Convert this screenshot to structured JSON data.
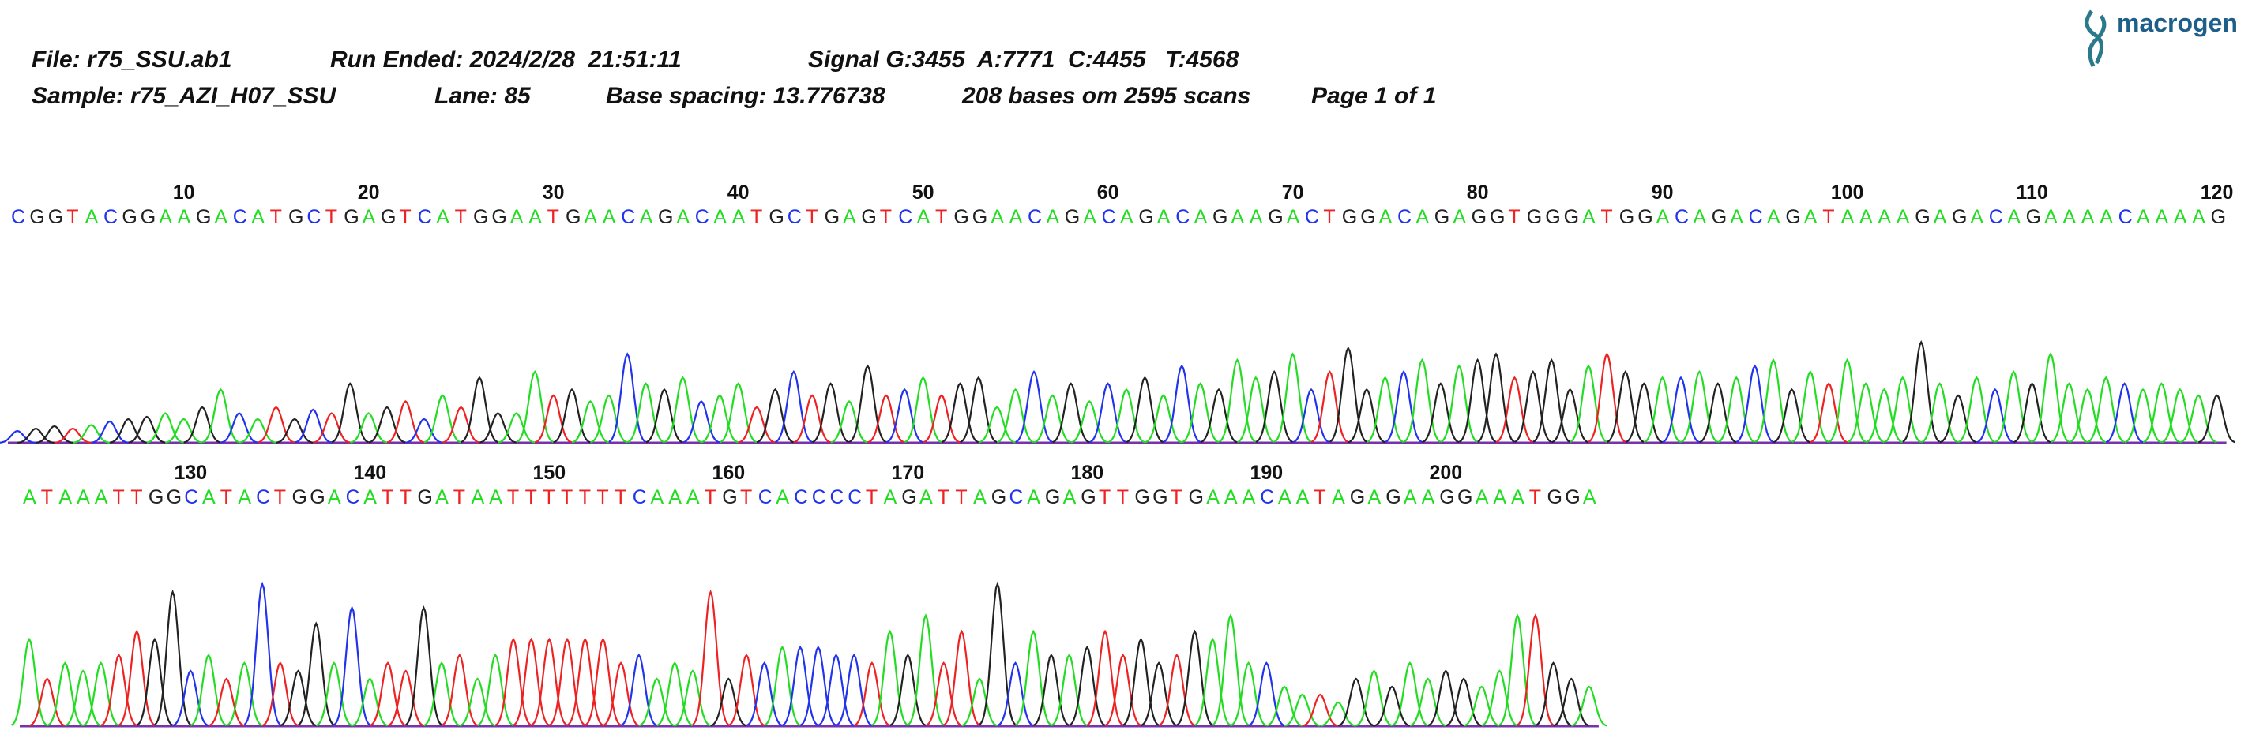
{
  "header": {
    "logo": "macrogen",
    "lines": [
      [
        "File: r75_SSU.ab1",
        "Run Ended: 2024/2/28  21:51:11",
        "Signal G:3455  A:7771  C:4455   T:4568"
      ],
      [
        "Sample: r75_AZI_H07_SSU",
        "Lane: 85",
        "Base spacing: 13.776738",
        "208 bases om 2595 scans",
        "Page 1 of 1"
      ]
    ]
  },
  "base_colors": {
    "A": "#22dd22",
    "C": "#2233ee",
    "G": "#222222",
    "T": "#ee2222"
  },
  "rows": [
    {
      "start": 1,
      "ticks": [
        10,
        20,
        30,
        40,
        50,
        60,
        70,
        80,
        90,
        100,
        110,
        120
      ],
      "bases": "CGGTACGGAAGACATGCTGAGTCATGGAATGAACAGACAATGCTGAGTCATGGAACAGACAGACAGAAGACTGGACAGAGGTGGGATGGACAGACAGATAAAAGAGACAGAAAACAAAAG",
      "peaks": [
        10,
        12,
        14,
        12,
        15,
        18,
        20,
        22,
        25,
        20,
        30,
        45,
        25,
        20,
        30,
        20,
        28,
        25,
        50,
        25,
        30,
        35,
        20,
        40,
        30,
        55,
        25,
        25,
        60,
        40,
        45,
        35,
        40,
        75,
        50,
        45,
        55,
        35,
        40,
        50,
        30,
        45,
        60,
        40,
        50,
        35,
        65,
        40,
        45,
        55,
        40,
        50,
        55,
        30,
        45,
        60,
        40,
        50,
        35,
        50,
        45,
        55,
        40,
        65,
        50,
        45,
        70,
        55,
        60,
        75,
        45,
        60,
        80,
        45,
        55,
        60,
        70,
        50,
        65,
        70,
        75,
        55,
        60,
        70,
        45,
        65,
        75,
        60,
        50,
        55,
        55,
        60,
        50,
        55,
        65,
        70,
        45,
        60,
        50,
        70,
        50,
        45,
        55,
        85,
        50,
        40,
        55,
        45,
        60,
        50,
        75,
        50,
        45,
        55,
        50,
        45,
        50,
        45,
        40,
        40
      ]
    },
    {
      "start": 121,
      "ticks": [
        130,
        140,
        150,
        160,
        170,
        180,
        190,
        200
      ],
      "bases": "ATAAATTGGCATACTGGACATTGATAATTTTTTTCAAATGTCACCCCTAGATTAGCAGAGTTGGTGAAACAATAGAGAAGGAAATGGA",
      "peaks": [
        55,
        30,
        40,
        35,
        40,
        45,
        60,
        55,
        85,
        35,
        45,
        30,
        40,
        90,
        40,
        35,
        65,
        40,
        75,
        30,
        40,
        35,
        75,
        40,
        45,
        30,
        45,
        55,
        55,
        55,
        55,
        55,
        55,
        40,
        45,
        30,
        40,
        35,
        85,
        30,
        45,
        40,
        50,
        50,
        50,
        45,
        45,
        40,
        60,
        45,
        70,
        40,
        60,
        30,
        90,
        40,
        60,
        45,
        45,
        50,
        60,
        45,
        55,
        40,
        45,
        60,
        55,
        70,
        40,
        40,
        25,
        20,
        20,
        15,
        30,
        35,
        25,
        40,
        30,
        35,
        30,
        25,
        35,
        70,
        70,
        40,
        30,
        25
      ]
    }
  ]
}
